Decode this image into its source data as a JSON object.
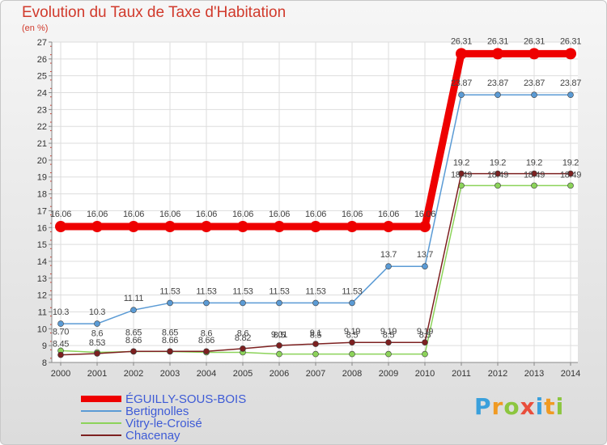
{
  "header": {
    "title": "Evolution du Taux de Taxe d'Habitation",
    "subtitle": "(en %)"
  },
  "logo": {
    "text": "Proxiti",
    "letters": [
      {
        "char": "P",
        "color": "#3aa0dc"
      },
      {
        "char": "r",
        "color": "#f09a22"
      },
      {
        "char": "o",
        "color": "#8cc63f"
      },
      {
        "char": "x",
        "color": "#e94e3c"
      },
      {
        "char": "i",
        "color": "#3aa0dc"
      },
      {
        "char": "t",
        "color": "#f09a22"
      },
      {
        "char": "i",
        "color": "#8cc63f"
      }
    ]
  },
  "chart_data": {
    "type": "line",
    "title": "Evolution du Taux de Taxe d'Habitation",
    "subtitle": "(en %)",
    "xlabel": "",
    "ylabel": "",
    "x": [
      "2000",
      "2001",
      "2002",
      "2003",
      "2004",
      "2005",
      "2006",
      "2007",
      "2008",
      "2009",
      "2010",
      "2011",
      "2012",
      "2013",
      "2014"
    ],
    "ylim": [
      8,
      27
    ],
    "yticks": [
      "8",
      "9",
      "10",
      "11",
      "12",
      "13",
      "14",
      "15",
      "16",
      "17",
      "18",
      "19",
      "20",
      "21",
      "22",
      "23",
      "24",
      "25",
      "26",
      "27"
    ],
    "grid": true,
    "legend_position": "bottom-left",
    "series": [
      {
        "name": "ÉGUILLY-SOUS-BOIS",
        "color": "#ee0000",
        "values": [
          16.06,
          16.06,
          16.06,
          16.06,
          16.06,
          16.06,
          16.06,
          16.06,
          16.06,
          16.06,
          16.06,
          26.31,
          26.31,
          26.31,
          26.31
        ],
        "labels": [
          "16.06",
          "16.06",
          "16.06",
          "16.06",
          "16.06",
          "16.06",
          "16.06",
          "16.06",
          "16.06",
          "16.06",
          "16.06",
          "26.31",
          "26.31",
          "26.31",
          "26.31"
        ]
      },
      {
        "name": "Bertignolles",
        "color": "#5b9bd5",
        "values": [
          10.3,
          10.3,
          11.11,
          11.53,
          11.53,
          11.53,
          11.53,
          11.53,
          11.53,
          13.7,
          13.7,
          23.87,
          23.87,
          23.87,
          23.87
        ],
        "labels": [
          "10.3",
          "10.3",
          "11.11",
          "11.53",
          "11.53",
          "11.53",
          "11.53",
          "11.53",
          "11.53",
          "13.7",
          "13.7",
          "23.87",
          "23.87",
          "23.87",
          "23.87"
        ]
      },
      {
        "name": "Vitry-le-Croisé",
        "color": "#8cd35a",
        "values": [
          8.7,
          8.6,
          8.65,
          8.65,
          8.6,
          8.6,
          8.5,
          8.5,
          8.5,
          8.5,
          8.5,
          18.49,
          18.49,
          18.49,
          18.49
        ],
        "labels": [
          "8.70",
          "8.6",
          "8.65",
          "8.65",
          "8.6",
          "8.6",
          "8.5",
          "8.5",
          "8.5",
          "8.5",
          "8.5",
          "18.49",
          "18.49",
          "18.49",
          "18.49"
        ]
      },
      {
        "name": "Chacenay",
        "color": "#7d2020",
        "values": [
          8.45,
          8.53,
          8.66,
          8.66,
          8.66,
          8.82,
          9.01,
          9.1,
          9.19,
          9.19,
          9.19,
          19.2,
          19.2,
          19.2,
          19.2
        ],
        "labels": [
          "8.45",
          "8.53",
          "8.66",
          "8.66",
          "8.66",
          "8.82",
          "9.01",
          "9.1",
          "9.19",
          "9.19",
          "9.19",
          "19.2",
          "19.2",
          "19.2",
          "19.2"
        ]
      }
    ]
  }
}
